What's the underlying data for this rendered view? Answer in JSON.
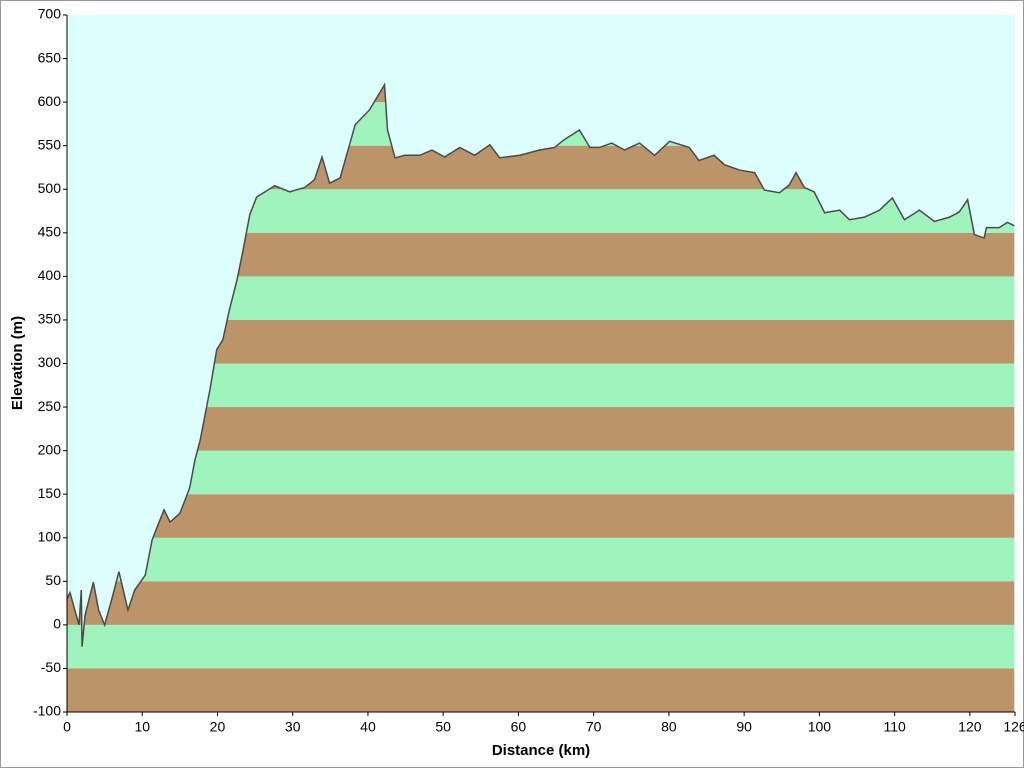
{
  "chart_data": {
    "type": "banded-area",
    "xlabel": "Distance (km)",
    "ylabel": "Elevation (m)",
    "x": [
      0,
      0.4,
      1.1,
      1.6,
      1.9,
      2.0,
      2.4,
      3.5,
      4.2,
      5.0,
      6.0,
      6.9,
      8.1,
      9.0,
      10.4,
      11.3,
      12.1,
      12.9,
      13.7,
      15.0,
      16.3,
      17.0,
      17.7,
      19.0,
      19.9,
      20.7,
      21.6,
      22.6,
      23.4,
      24.3,
      25.2,
      26.3,
      27.6,
      29.6,
      31.6,
      32.9,
      33.9,
      34.9,
      36.3,
      38.3,
      40.2,
      42.2,
      42.6,
      43.6,
      44.9,
      46.9,
      48.5,
      50.2,
      52.2,
      54.2,
      56.2,
      57.5,
      60.2,
      62.8,
      64.8,
      66.1,
      68.1,
      69.5,
      70.8,
      72.4,
      74.1,
      76.1,
      78.1,
      80.1,
      82.7,
      84.0,
      86.0,
      87.4,
      89.4,
      91.4,
      92.7,
      94.7,
      96.0,
      96.9,
      98.0,
      99.3,
      100.7,
      102.7,
      104.0,
      106.0,
      108.0,
      109.7,
      111.3,
      113.3,
      115.3,
      117.3,
      118.6,
      119.7,
      120.6,
      121.9,
      122.2,
      123.9,
      125.0,
      125.9
    ],
    "values": [
      30,
      37,
      15,
      0,
      40,
      -25,
      11,
      49,
      17,
      0,
      31,
      61,
      17,
      40,
      57,
      97,
      115,
      132,
      118,
      128,
      157,
      189,
      212,
      270,
      316,
      327,
      362,
      396,
      430,
      471,
      491,
      497,
      504,
      497,
      502,
      511,
      537,
      507,
      513,
      574,
      591,
      620,
      568,
      536,
      539,
      539,
      545,
      537,
      548,
      539,
      551,
      536,
      539,
      545,
      548,
      557,
      568,
      548,
      548,
      553,
      545,
      553,
      539,
      555,
      548,
      533,
      539,
      528,
      522,
      519,
      499,
      496,
      505,
      519,
      502,
      497,
      473,
      476,
      465,
      468,
      476,
      490,
      465,
      476,
      463,
      468,
      474,
      488,
      448,
      444,
      456,
      456,
      462,
      458
    ],
    "color": "#4a4a4a",
    "background": "#dcfffe",
    "band_step": 50,
    "band_colors": [
      "#bb9469",
      "#9ef4bc"
    ],
    "xlim": [
      0,
      126
    ],
    "xticks": [
      0,
      10,
      20,
      30,
      40,
      50,
      60,
      70,
      80,
      90,
      100,
      110,
      120,
      126
    ],
    "ylim": [
      -100,
      700
    ],
    "yticks": [
      -100,
      -50,
      0,
      50,
      100,
      150,
      200,
      250,
      300,
      350,
      400,
      450,
      500,
      550,
      600,
      650,
      700
    ]
  }
}
